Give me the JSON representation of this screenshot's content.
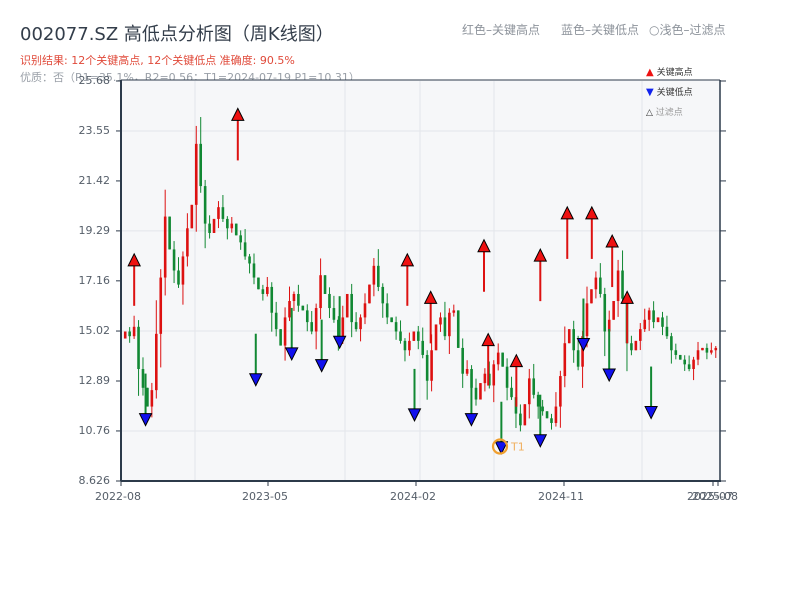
{
  "header": {
    "title": "002077.SZ 高低点分析图（周K线图）",
    "result_line": "识别结果: 12个关键高点, 12个关键低点   准确度: 90.5%",
    "quality_line": "优质：否（R1=35.1%，R2=0.56；T1=2024-07-19 P1=10.31）",
    "legend_red": "红色–关键高点",
    "legend_blue": "蓝色–关键低点",
    "legend_light": "○浅色–过滤点"
  },
  "legend": {
    "items": [
      {
        "label": "关键高点",
        "marker": "triangle-up",
        "color": "#ee1111"
      },
      {
        "label": "关键低点",
        "marker": "triangle-down",
        "color": "#1122ee"
      },
      {
        "label": "过滤点",
        "marker": "triangle-up-hollow",
        "color": "#999999"
      }
    ]
  },
  "colors": {
    "up": "#dd1111",
    "down": "#118833",
    "high_marker": "#ee1111",
    "low_marker": "#1111ee",
    "t1_circle": "#f0a030",
    "axis": "#2c3a4a",
    "grid": "#e3e6ea",
    "plot_bg": "#f6f7f9"
  },
  "chart_data": {
    "type": "candlestick",
    "title": "002077.SZ 高低点分析图（周K线图）",
    "xlabel": "",
    "ylabel": "",
    "ylim": [
      8.626,
      25.68
    ],
    "y_ticks": [
      "8.626",
      "10.76",
      "12.89",
      "15.02",
      "17.16",
      "19.29",
      "21.42",
      "23.55",
      "25.68"
    ],
    "x_ticks": [
      "2022-08",
      "2023-05",
      "2024-02",
      "2024-11",
      "2025-07",
      "2025-08"
    ],
    "grid": true,
    "legend_position": "upper right",
    "annotation": {
      "label": "T1",
      "date": "2024-07-19",
      "price": 10.31
    },
    "key_highs": [
      {
        "x_frac": 0.022,
        "price": 17.8
      },
      {
        "x_frac": 0.195,
        "price": 24.0
      },
      {
        "x_frac": 0.478,
        "price": 17.8
      },
      {
        "x_frac": 0.606,
        "price": 18.4
      },
      {
        "x_frac": 0.7,
        "price": 18.0
      },
      {
        "x_frac": 0.82,
        "price": 18.6
      },
      {
        "x_frac": 0.517,
        "price": 16.2
      },
      {
        "x_frac": 0.613,
        "price": 14.4
      },
      {
        "x_frac": 0.66,
        "price": 13.5
      },
      {
        "x_frac": 0.745,
        "price": 19.8
      },
      {
        "x_frac": 0.786,
        "price": 19.8
      },
      {
        "x_frac": 0.845,
        "price": 16.2
      }
    ],
    "key_lows": [
      {
        "x_frac": 0.041,
        "price": 11.5
      },
      {
        "x_frac": 0.225,
        "price": 13.2
      },
      {
        "x_frac": 0.285,
        "price": 14.3
      },
      {
        "x_frac": 0.335,
        "price": 13.8
      },
      {
        "x_frac": 0.365,
        "price": 14.8
      },
      {
        "x_frac": 0.49,
        "price": 11.7
      },
      {
        "x_frac": 0.585,
        "price": 11.5
      },
      {
        "x_frac": 0.635,
        "price": 10.3
      },
      {
        "x_frac": 0.7,
        "price": 10.6
      },
      {
        "x_frac": 0.772,
        "price": 14.7
      },
      {
        "x_frac": 0.815,
        "price": 13.4
      },
      {
        "x_frac": 0.885,
        "price": 11.8
      }
    ],
    "weekly_close_approx": [
      15.0,
      14.8,
      15.2,
      13.4,
      12.6,
      11.8,
      12.5,
      14.9,
      17.3,
      19.9,
      18.5,
      17.6,
      17.0,
      18.2,
      19.4,
      20.4,
      23.0,
      21.2,
      19.6,
      19.2,
      19.8,
      20.3,
      19.8,
      19.4,
      19.6,
      19.1,
      18.8,
      18.2,
      17.9,
      17.3,
      16.8,
      16.6,
      16.9,
      15.8,
      15.1,
      14.4,
      15.6,
      16.3,
      16.6,
      16.1,
      15.9,
      15.4,
      15.0,
      16.0,
      17.4,
      16.6,
      16.0,
      15.5,
      14.8,
      15.6,
      16.6,
      15.4,
      15.1,
      15.6,
      16.2,
      17.0,
      17.8,
      16.9,
      16.2,
      15.6,
      15.4,
      15.0,
      14.6,
      14.2,
      14.6,
      15.0,
      14.6,
      14.0,
      12.9,
      14.2,
      15.3,
      15.6,
      14.8,
      15.8,
      15.9,
      14.3,
      13.2,
      13.4,
      12.6,
      12.1,
      12.8,
      13.2,
      12.7,
      13.6,
      14.1,
      13.5,
      12.6,
      12.2,
      11.5,
      11.0,
      11.9,
      13.0,
      12.3,
      11.8,
      11.6,
      11.3,
      11.1,
      11.8,
      13.1,
      14.5,
      15.1,
      14.2,
      13.5,
      14.8,
      16.2,
      16.8,
      17.3,
      16.6,
      15.0,
      15.5,
      16.3,
      17.6,
      16.4,
      14.5,
      14.2,
      14.6,
      15.1,
      15.5,
      15.9,
      15.4,
      15.6,
      15.2,
      14.8,
      14.2,
      14.0,
      13.8,
      13.6,
      13.4,
      13.8,
      14.2,
      14.3,
      14.1,
      14.2,
      14.3
    ]
  }
}
